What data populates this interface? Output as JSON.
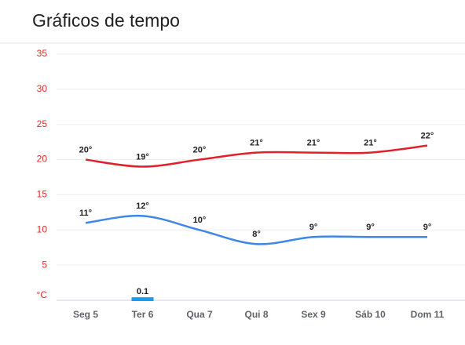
{
  "chart_data": {
    "type": "line",
    "title": "Gráficos de tempo",
    "categories": [
      "Seg 5",
      "Ter 6",
      "Qua 7",
      "Qui 8",
      "Sex 9",
      "Sáb 10",
      "Dom 11"
    ],
    "series": [
      {
        "type": "line",
        "color": "#e0212b",
        "values": [
          20,
          19,
          20,
          21,
          21,
          21,
          22
        ],
        "value_labels": [
          "20°",
          "19°",
          "20°",
          "21°",
          "21°",
          "21°",
          "22°"
        ]
      },
      {
        "type": "line",
        "color": "#3f86e8",
        "values": [
          11,
          12,
          10,
          8,
          9,
          9,
          9
        ],
        "value_labels": [
          "11°",
          "12°",
          "10°",
          "8°",
          "9°",
          "9°",
          "9°"
        ]
      },
      {
        "type": "bar",
        "color": "#1a9cf0",
        "values": [
          null,
          0.1,
          null,
          null,
          null,
          null,
          null
        ]
      }
    ],
    "ylim": [
      0,
      35
    ],
    "yticks": [
      {
        "value": 0,
        "label": "°C"
      },
      5,
      10,
      15,
      20,
      25,
      30,
      35
    ],
    "grid": true
  }
}
